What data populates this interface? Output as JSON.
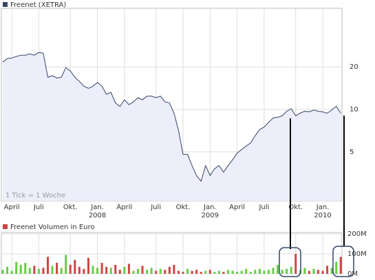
{
  "chart_data": [
    {
      "type": "line",
      "title": "Freenet (XETRA)",
      "annotation": "1 Tick = 1 Woche",
      "categories": [
        null,
        null,
        "April",
        null,
        null,
        null,
        null,
        null,
        "Juli",
        null,
        null,
        null,
        null,
        null,
        null,
        "Okt.",
        null,
        null,
        null,
        null,
        null,
        "Jan. 2008",
        null,
        null,
        null,
        null,
        null,
        "April",
        null,
        null,
        null,
        null,
        null,
        null,
        "Juli",
        null,
        null,
        null,
        null,
        null,
        "Okt.",
        null,
        null,
        null,
        null,
        null,
        "Jan. 2009",
        null,
        null,
        null,
        null,
        null,
        "April",
        null,
        null,
        null,
        null,
        null,
        "Juli",
        null,
        null,
        null,
        null,
        null,
        null,
        "Okt.",
        null,
        null,
        null,
        null,
        null,
        "Jan. 2010",
        null,
        null,
        null,
        null
      ],
      "values": [
        21.6,
        22.9,
        23.1,
        23.7,
        24.2,
        24.2,
        24.7,
        24.2,
        25.3,
        25.0,
        16.9,
        17.3,
        16.7,
        16.9,
        19.8,
        18.7,
        16.9,
        15.8,
        14.6,
        14.1,
        14.6,
        15.5,
        14.6,
        12.8,
        13.2,
        11.1,
        10.5,
        11.7,
        10.8,
        11.3,
        12.1,
        11.7,
        12.4,
        12.4,
        12.1,
        12.4,
        11.3,
        11.1,
        9.4,
        7.1,
        4.8,
        4.8,
        4.0,
        3.4,
        3.1,
        4.0,
        3.4,
        3.8,
        4.0,
        3.6,
        4.0,
        4.4,
        4.9,
        5.2,
        5.5,
        5.8,
        6.5,
        7.2,
        7.5,
        8.1,
        8.7,
        8.8,
        9.0,
        9.7,
        10.1,
        9.0,
        9.4,
        9.7,
        9.6,
        9.9,
        9.7,
        9.6,
        9.4,
        9.9,
        10.5,
        9.4
      ],
      "color": "#334466",
      "area_color": "#eceefa",
      "log_scale": true,
      "ylim": [
        2.25,
        52
      ],
      "yticks": [
        5,
        10,
        20
      ],
      "grid": true
    },
    {
      "type": "bar",
      "title": "Freenet Volumen in Euro",
      "values": [
        20,
        35,
        15,
        60,
        45,
        55,
        30,
        40,
        25,
        30,
        85,
        40,
        55,
        30,
        95,
        45,
        70,
        35,
        25,
        80,
        40,
        30,
        55,
        35,
        30,
        45,
        20,
        35,
        50,
        15,
        25,
        40,
        20,
        30,
        15,
        25,
        20,
        35,
        45,
        15,
        10,
        25,
        15,
        20,
        10,
        15,
        20,
        10,
        15,
        10,
        20,
        15,
        10,
        15,
        25,
        10,
        20,
        25,
        15,
        20,
        30,
        45,
        20,
        25,
        35,
        100,
        20,
        30,
        15,
        25,
        20,
        15,
        40,
        30,
        60,
        85
      ],
      "up_color": "#66cc44",
      "down_color": "#cc4444",
      "ylim": [
        0,
        200
      ],
      "yticks": [
        {
          "value": 0,
          "label": "0M"
        },
        {
          "value": 100,
          "label": "100M"
        },
        {
          "value": 200,
          "label": "200M"
        }
      ],
      "grid": true
    }
  ]
}
